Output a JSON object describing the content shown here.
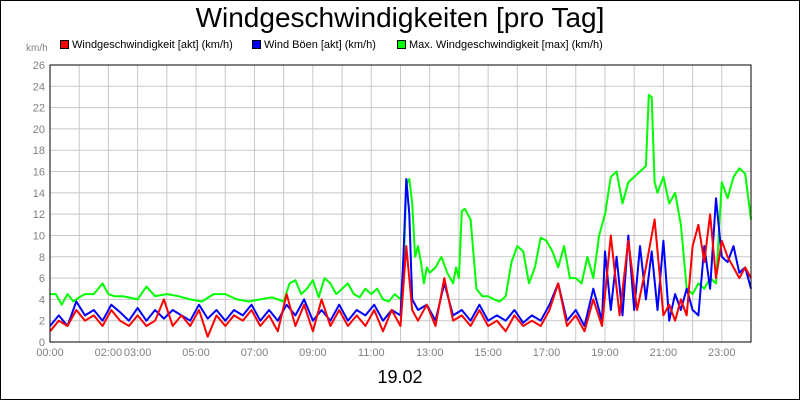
{
  "chart_data": {
    "type": "line",
    "title": "Windgeschwindigkeiten [pro Tag]",
    "y_unit_label": "km/h",
    "date_label": "19.02",
    "ylim": [
      0,
      26
    ],
    "y_ticks": [
      0,
      2,
      4,
      6,
      8,
      10,
      12,
      14,
      16,
      18,
      20,
      22,
      24,
      26
    ],
    "xlim": [
      0,
      24
    ],
    "x_ticks": [
      {
        "hour": 0,
        "label": "00:00"
      },
      {
        "hour": 2,
        "label": "02:00"
      },
      {
        "hour": 3,
        "label": "03:00"
      },
      {
        "hour": 5,
        "label": "05:00"
      },
      {
        "hour": 7,
        "label": "07:00"
      },
      {
        "hour": 9,
        "label": "09:00"
      },
      {
        "hour": 11,
        "label": "11:00"
      },
      {
        "hour": 13,
        "label": "13:00"
      },
      {
        "hour": 15,
        "label": "15:00"
      },
      {
        "hour": 17,
        "label": "17:00"
      },
      {
        "hour": 19,
        "label": "19:00"
      },
      {
        "hour": 21,
        "label": "21:00"
      },
      {
        "hour": 23,
        "label": "23:00"
      }
    ],
    "grid": true,
    "legend_position": "top",
    "series": [
      {
        "name": "Max. Windgeschwindigkeit [max] (km/h)",
        "color": "#00ff00",
        "x": [
          0,
          0.2,
          0.4,
          0.6,
          0.8,
          1.0,
          1.2,
          1.5,
          1.8,
          2.0,
          2.2,
          2.5,
          3.0,
          3.3,
          3.6,
          4.0,
          4.4,
          4.8,
          5.2,
          5.6,
          6.0,
          6.4,
          6.8,
          7.2,
          7.6,
          8.0,
          8.2,
          8.4,
          8.6,
          8.8,
          9.0,
          9.2,
          9.4,
          9.6,
          9.8,
          10.0,
          10.2,
          10.4,
          10.6,
          10.8,
          11.0,
          11.2,
          11.4,
          11.6,
          11.8,
          12.0,
          12.1,
          12.2,
          12.3,
          12.4,
          12.5,
          12.6,
          12.7,
          12.8,
          12.9,
          13.0,
          13.2,
          13.4,
          13.6,
          13.8,
          13.9,
          14.0,
          14.1,
          14.2,
          14.4,
          14.6,
          14.8,
          15.0,
          15.2,
          15.4,
          15.6,
          15.8,
          16.0,
          16.2,
          16.4,
          16.6,
          16.8,
          17.0,
          17.2,
          17.4,
          17.6,
          17.8,
          18.0,
          18.2,
          18.4,
          18.6,
          18.8,
          19.0,
          19.2,
          19.4,
          19.6,
          19.8,
          20.0,
          20.2,
          20.4,
          20.5,
          20.6,
          20.7,
          20.8,
          21.0,
          21.2,
          21.4,
          21.6,
          21.8,
          22.0,
          22.2,
          22.4,
          22.6,
          22.8,
          23.0,
          23.2,
          23.4,
          23.6,
          23.8,
          24.0
        ],
        "values": [
          4.5,
          4.5,
          3.5,
          4.5,
          3.8,
          4.2,
          4.5,
          4.5,
          5.5,
          4.5,
          4.3,
          4.3,
          4.0,
          5.2,
          4.3,
          4.5,
          4.3,
          4.0,
          3.8,
          4.5,
          4.5,
          4.0,
          3.8,
          4.0,
          4.2,
          3.8,
          5.5,
          5.8,
          4.5,
          5.0,
          5.8,
          4.2,
          6.0,
          5.5,
          4.5,
          5.0,
          5.5,
          4.5,
          4.2,
          5.0,
          4.5,
          5.0,
          4.0,
          3.8,
          4.5,
          4.0,
          6.0,
          14.8,
          15.3,
          13.0,
          8.0,
          9.0,
          7.5,
          5.5,
          7.0,
          6.5,
          7.0,
          8.0,
          6.5,
          5.5,
          7.0,
          6.0,
          12.3,
          12.5,
          11.5,
          5.0,
          4.3,
          4.3,
          4.0,
          3.8,
          4.3,
          7.5,
          9.0,
          8.5,
          5.5,
          7.0,
          9.8,
          9.5,
          8.5,
          7.0,
          9.0,
          6.0,
          6.0,
          5.5,
          8.0,
          6.0,
          10.0,
          12.0,
          15.5,
          16.0,
          13.0,
          15.0,
          15.5,
          16.0,
          16.5,
          23.2,
          23.0,
          15.0,
          14.0,
          15.5,
          13.0,
          14.0,
          11.0,
          5.0,
          4.5,
          5.5,
          5.0,
          6.0,
          5.5,
          15.0,
          13.5,
          15.5,
          16.3,
          15.8,
          11.5
        ]
      },
      {
        "name": "Wind Böen [akt] (km/h)",
        "color": "#0000ff",
        "x": [
          0,
          0.3,
          0.6,
          0.9,
          1.2,
          1.5,
          1.8,
          2.1,
          2.4,
          2.7,
          3.0,
          3.3,
          3.6,
          3.9,
          4.2,
          4.5,
          4.8,
          5.1,
          5.4,
          5.7,
          6.0,
          6.3,
          6.6,
          6.9,
          7.2,
          7.5,
          7.8,
          8.1,
          8.4,
          8.7,
          9.0,
          9.3,
          9.6,
          9.9,
          10.2,
          10.5,
          10.8,
          11.1,
          11.4,
          11.7,
          12.0,
          12.1,
          12.2,
          12.3,
          12.4,
          12.6,
          12.9,
          13.2,
          13.5,
          13.8,
          14.1,
          14.4,
          14.7,
          15.0,
          15.3,
          15.6,
          15.9,
          16.2,
          16.5,
          16.8,
          17.1,
          17.4,
          17.7,
          18.0,
          18.3,
          18.6,
          18.9,
          19.0,
          19.2,
          19.4,
          19.6,
          19.8,
          20.0,
          20.2,
          20.4,
          20.6,
          20.8,
          21.0,
          21.2,
          21.4,
          21.6,
          21.8,
          22.0,
          22.2,
          22.4,
          22.6,
          22.8,
          23.0,
          23.2,
          23.4,
          23.6,
          23.8,
          24.0
        ],
        "values": [
          1.5,
          2.5,
          1.5,
          3.8,
          2.5,
          3.0,
          2.0,
          3.5,
          2.8,
          2.0,
          3.2,
          2.0,
          3.0,
          2.2,
          3.0,
          2.5,
          2.0,
          3.5,
          2.2,
          3.0,
          2.0,
          3.0,
          2.5,
          3.5,
          2.0,
          3.0,
          2.0,
          3.5,
          2.5,
          4.0,
          2.0,
          3.0,
          2.0,
          3.5,
          2.0,
          3.0,
          2.5,
          3.5,
          2.0,
          3.0,
          2.5,
          8.0,
          15.3,
          12.0,
          4.0,
          3.0,
          3.5,
          2.0,
          5.5,
          2.5,
          3.0,
          2.0,
          3.5,
          2.0,
          2.5,
          2.0,
          3.0,
          1.8,
          2.5,
          2.0,
          3.5,
          5.5,
          2.0,
          3.0,
          1.5,
          5.0,
          2.0,
          8.5,
          3.0,
          8.0,
          2.5,
          10.0,
          3.0,
          9.0,
          4.0,
          8.5,
          3.0,
          9.5,
          2.0,
          4.5,
          3.0,
          5.0,
          3.0,
          2.5,
          9.0,
          5.0,
          13.5,
          8.0,
          7.5,
          9.0,
          6.5,
          7.0,
          5.0
        ]
      },
      {
        "name": "Windgeschwindigkeit [akt] (km/h)",
        "color": "#ff0000",
        "x": [
          0,
          0.3,
          0.6,
          0.9,
          1.2,
          1.5,
          1.8,
          2.1,
          2.4,
          2.7,
          3.0,
          3.3,
          3.6,
          3.9,
          4.2,
          4.5,
          4.8,
          5.1,
          5.4,
          5.7,
          6.0,
          6.3,
          6.6,
          6.9,
          7.2,
          7.5,
          7.8,
          8.1,
          8.4,
          8.7,
          9.0,
          9.3,
          9.6,
          9.9,
          10.2,
          10.5,
          10.8,
          11.1,
          11.4,
          11.7,
          12.0,
          12.2,
          12.4,
          12.6,
          12.9,
          13.2,
          13.5,
          13.8,
          14.1,
          14.4,
          14.7,
          15.0,
          15.3,
          15.6,
          15.9,
          16.2,
          16.5,
          16.8,
          17.1,
          17.4,
          17.7,
          18.0,
          18.3,
          18.6,
          18.9,
          19.2,
          19.5,
          19.8,
          20.1,
          20.4,
          20.7,
          21.0,
          21.2,
          21.4,
          21.6,
          21.8,
          22.0,
          22.2,
          22.4,
          22.6,
          22.8,
          23.0,
          23.2,
          23.4,
          23.6,
          23.8,
          24.0
        ],
        "values": [
          1.0,
          2.0,
          1.5,
          3.0,
          2.0,
          2.5,
          1.5,
          3.0,
          2.0,
          1.5,
          2.5,
          1.5,
          2.0,
          4.0,
          1.5,
          2.5,
          1.5,
          3.0,
          0.5,
          2.5,
          1.5,
          2.5,
          2.0,
          3.0,
          1.5,
          2.5,
          1.0,
          4.5,
          1.5,
          3.5,
          1.0,
          4.0,
          1.5,
          3.0,
          1.5,
          2.5,
          1.5,
          3.0,
          1.0,
          3.0,
          1.5,
          9.0,
          3.0,
          2.0,
          3.5,
          1.5,
          6.0,
          2.0,
          2.5,
          1.5,
          3.0,
          1.5,
          2.0,
          1.0,
          2.5,
          1.5,
          2.0,
          1.5,
          3.0,
          5.5,
          1.5,
          2.5,
          1.0,
          4.0,
          1.5,
          10.0,
          2.5,
          9.5,
          3.0,
          7.0,
          11.5,
          2.5,
          3.5,
          2.0,
          4.0,
          2.5,
          9.0,
          11.0,
          7.5,
          12.0,
          6.0,
          9.5,
          8.0,
          7.0,
          6.0,
          7.0,
          6.0
        ]
      }
    ]
  }
}
